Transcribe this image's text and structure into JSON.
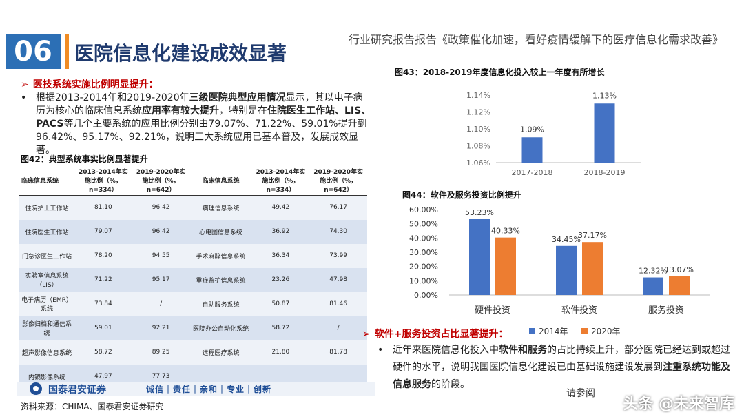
{
  "header": {
    "section_number": "06",
    "title": "医院信息化建设成效显著",
    "report_title": "行业研究报告报告《政策催化加速，看好疫情缓解下的医疗信息化需求改善》"
  },
  "left": {
    "subhead": "医技系统实施比例明显提升：",
    "bullet_dot": "•",
    "para_parts": [
      "根据2013-2014年和2019-2020年",
      "三级医院典型应用情况",
      "显示，其以电子病历为核心的临床信息系统",
      "应用率有较大提升",
      "，特别是在",
      "住院医生工作站、LIS、PACS",
      "等几个主要系统的应用比例分别由79.07%、71.22%、59.01%提升到96.42%、95.17%、92.21%，说明三大系统应用已基本普及，发展成效显著。"
    ],
    "fig42_label": "图42：典型系统事实比例显著提升",
    "table": {
      "headers": [
        "临床信息系统",
        "2013-2014年实施比例（%，n=334）",
        "2019-2020年实施比例（%，n=642）",
        "临床信息系统",
        "2013-2014年实施比例（%，n=334）",
        "2019-2020年实施比例（%，n=642）"
      ],
      "rows": [
        [
          "住院护士工作站",
          "81.10",
          "96.42",
          "病理信息系统",
          "49.42",
          "76.17"
        ],
        [
          "住院医生工作站",
          "79.07",
          "96.42",
          "心电图信息系统",
          "36.92",
          "74.30"
        ],
        [
          "门急诊医生工作站",
          "78.20",
          "94.55",
          "手术麻醉信息系统",
          "36.34",
          "73.99"
        ],
        [
          "实验室信息系统（LIS）",
          "71.22",
          "95.17",
          "重症监护信息系统",
          "23.26",
          "47.98"
        ],
        [
          "电子病历（EMR）系统",
          "73.84",
          "/",
          "自助服务系统",
          "50.87",
          "81.46"
        ],
        [
          "影像归档和通信系统",
          "59.01",
          "92.21",
          "医院办公自动化系统",
          "58.72",
          "/"
        ],
        [
          "超声影像信息系统",
          "58.72",
          "89.25",
          "远程医疗系统",
          "21.80",
          "81.78"
        ],
        [
          "内镜影像系统",
          "47.97",
          "77.73",
          "",
          "",
          ""
        ]
      ]
    },
    "logo_text": "国泰君安证券",
    "motto": "诚信｜责任｜亲和｜专业｜创新",
    "source": "资料来源：CHIMA、国泰君安证券研究"
  },
  "right": {
    "fig43_label": "图43：2018-2019年度信息化投入较上一年度有所增长",
    "fig44_label": "图44：软件及服务投资比例提升",
    "subhead": "软件+服务投资占比显著提升：",
    "bullet_dot": "•",
    "para_parts": [
      "近年来医院信息化投入中",
      "软件和服务",
      "的占比持续上升，部分医院已经达到或超过硬件的水平，说明我国医院信息化建设已由基础设施建设发展到",
      "注重系统功能及信息服务",
      "的阶段。"
    ],
    "read_more": "请参阅",
    "watermark": "头条 @未来智库"
  },
  "colors": {
    "blue": "#2c6fb5",
    "orange": "#f08c24",
    "bar_blue": "#4472c4",
    "bar_orange": "#ed7d31"
  },
  "chart_data": [
    {
      "type": "bar",
      "title": "图43：2018-2019年度信息化投入较上一年度有所增长",
      "categories": [
        "2017-2018",
        "2018-2019"
      ],
      "values": [
        1.09,
        1.13
      ],
      "value_labels": [
        "1.09%",
        "1.13%"
      ],
      "yticks": [
        "1.06%",
        "1.08%",
        "1.10%",
        "1.12%",
        "1.14%"
      ],
      "ylim": [
        1.06,
        1.14
      ]
    },
    {
      "type": "bar",
      "title": "图44：软件及服务投资比例提升",
      "categories": [
        "硬件投资",
        "软件投资",
        "服务投资"
      ],
      "series": [
        {
          "name": "2014年",
          "values": [
            53.23,
            34.45,
            12.32
          ],
          "labels": [
            "53.23%",
            "34.45%",
            "12.32%"
          ]
        },
        {
          "name": "2020年",
          "values": [
            40.33,
            37.17,
            13.07
          ],
          "labels": [
            "40.33%",
            "37.17%",
            "13.07%"
          ]
        }
      ],
      "yticks": [
        "0.00%",
        "10.00%",
        "20.00%",
        "30.00%",
        "40.00%",
        "50.00%",
        "60.00%"
      ],
      "ylim": [
        0,
        60
      ]
    }
  ]
}
